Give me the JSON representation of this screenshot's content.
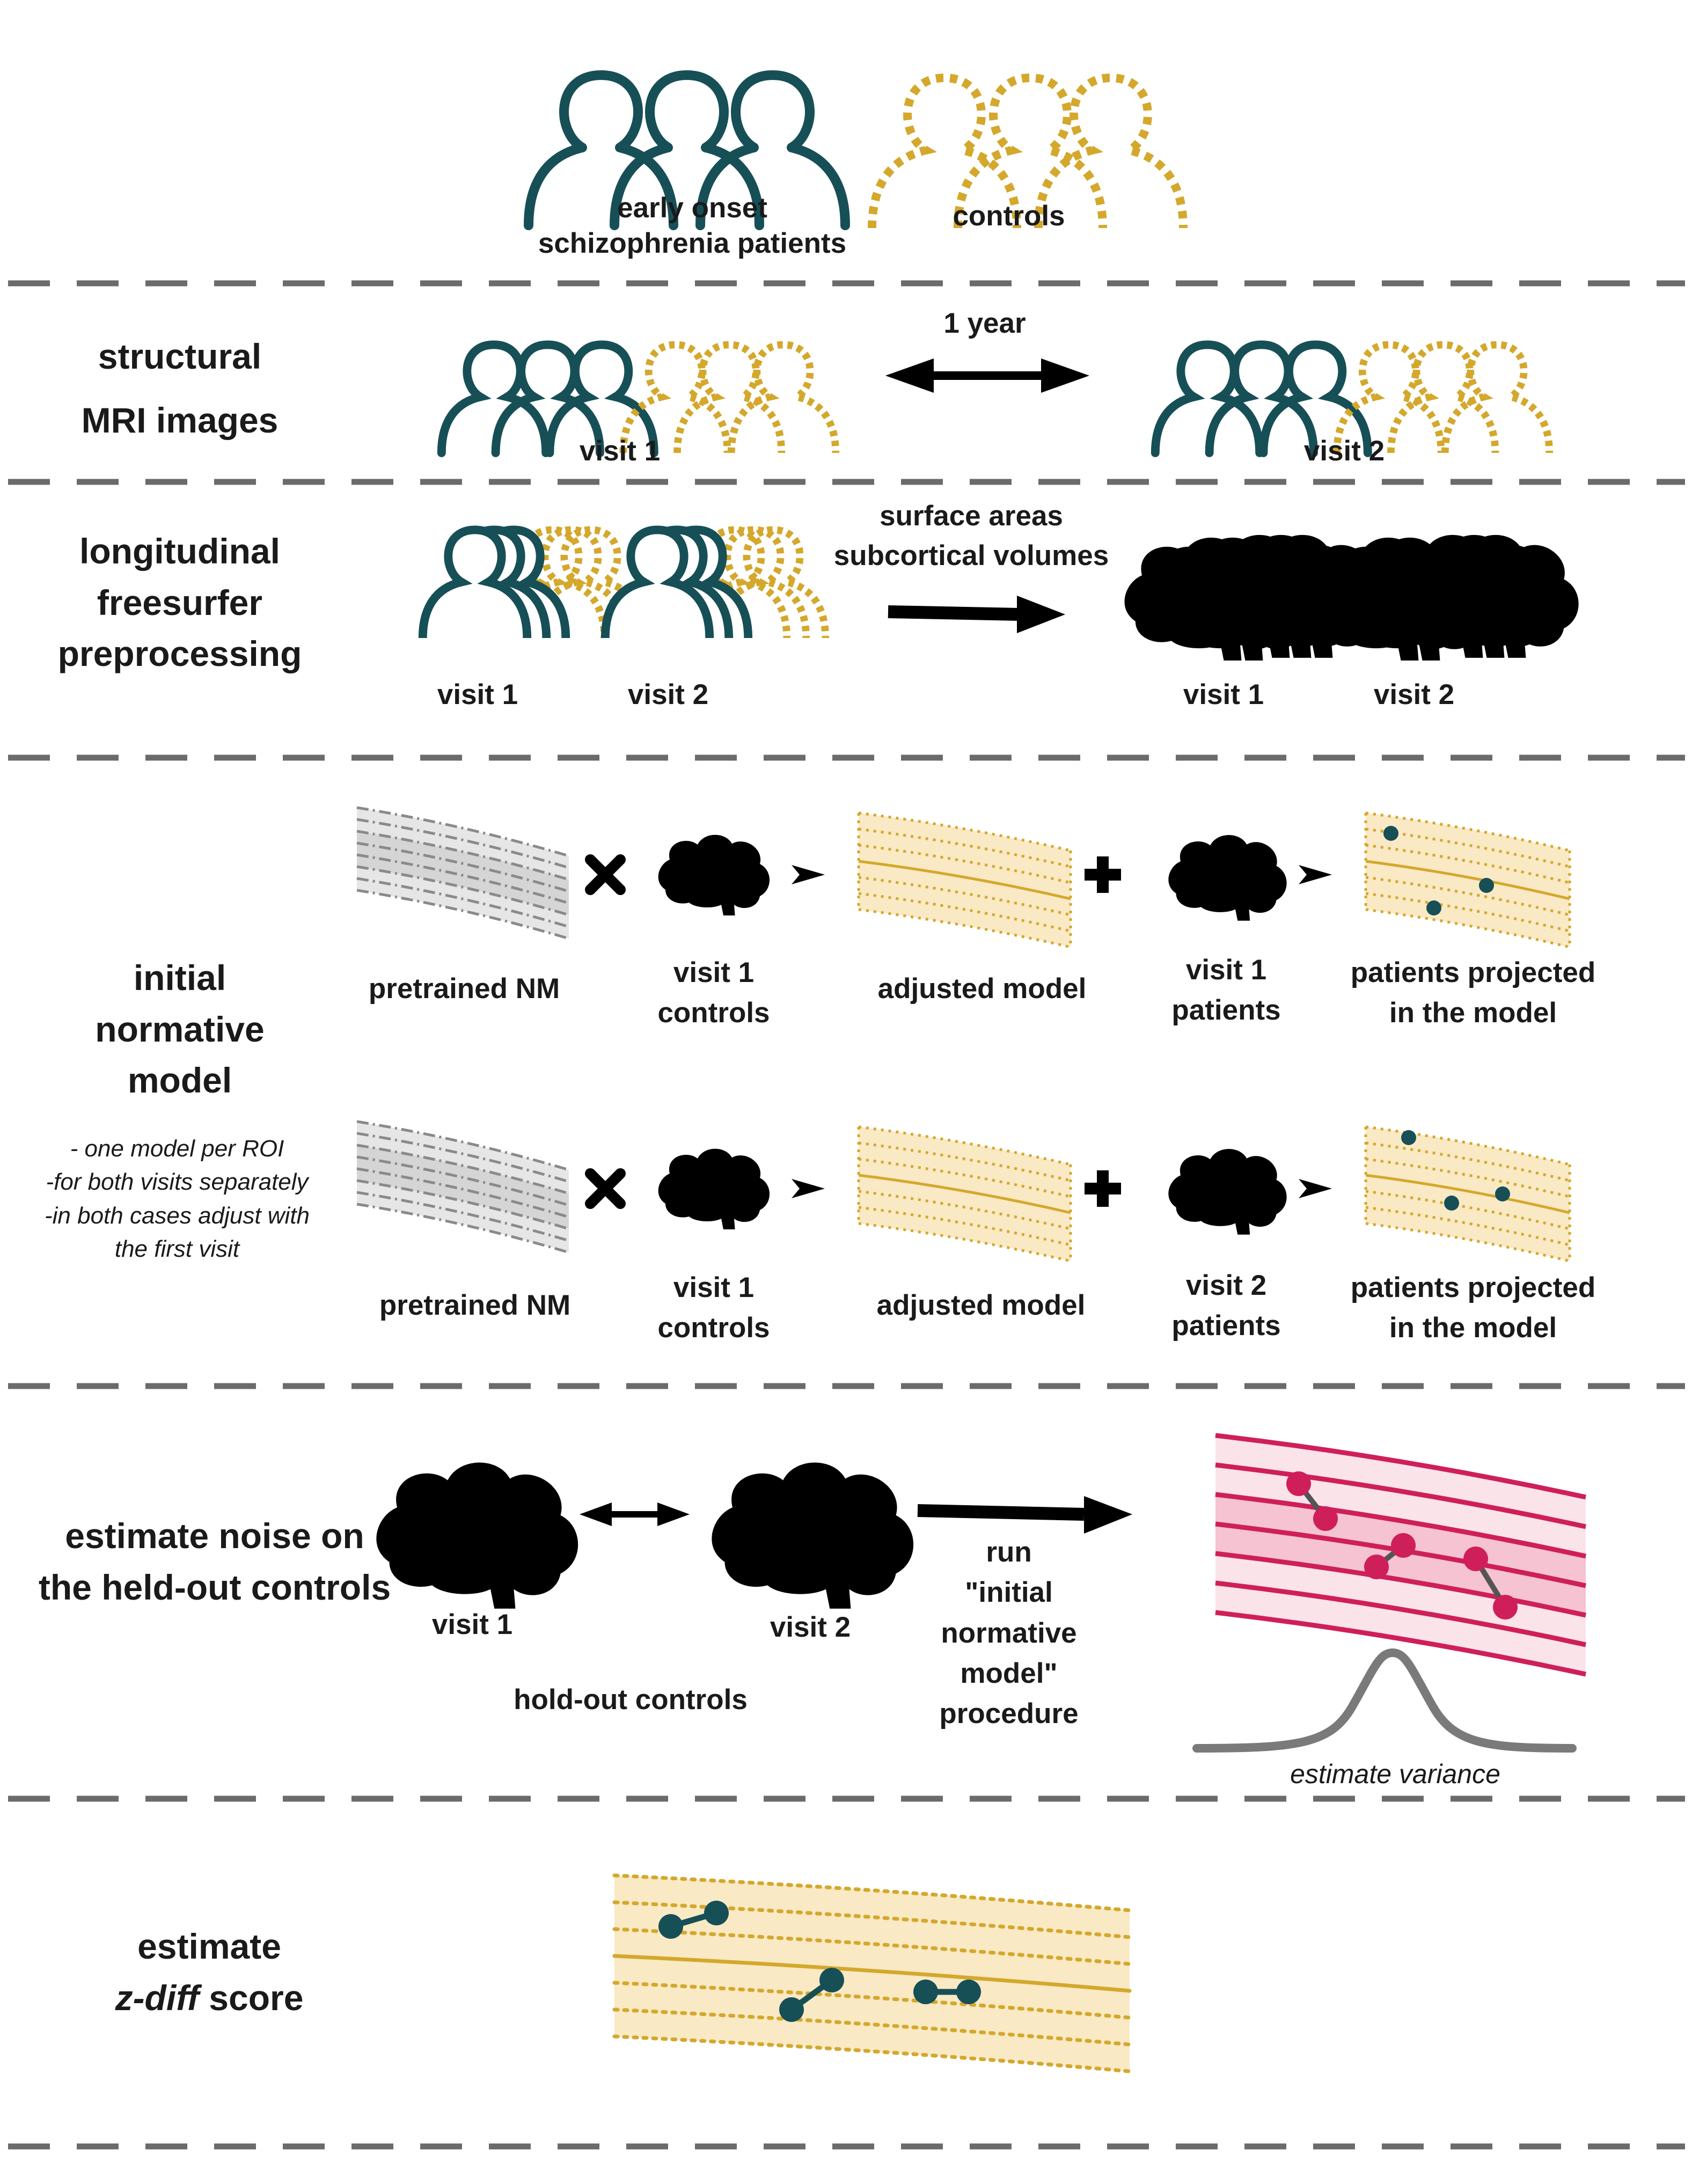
{
  "colors": {
    "patients": "#174f57",
    "controls": "#d4a82c",
    "holdout": "#cf1f5a",
    "pretrained": "#8a8a8a",
    "divider": "#6b6b6b",
    "variance": "#7a7a7a",
    "arrow": "#000000"
  },
  "top": {
    "patients_label": [
      "early onset",
      "schizophrenia patients"
    ],
    "controls_label": "controls",
    "patients_icon": "people-group-icon",
    "controls_icon": "people-group-dotted-icon"
  },
  "sections": {
    "mri": {
      "title": [
        "structural",
        "MRI images"
      ],
      "interval": "1 year",
      "visit1": "visit 1",
      "visit2": "visit 2"
    },
    "freesurfer": {
      "title": [
        "longitudinal",
        "freesurfer",
        "preprocessing"
      ],
      "measures": [
        "surface areas",
        "subcortical volumes"
      ],
      "in_visit1": "visit 1",
      "in_visit2": "visit 2",
      "out_visit1": "visit 1",
      "out_visit2": "visit 2"
    },
    "initial": {
      "title": [
        "initial",
        "normative",
        "model"
      ],
      "notes": [
        "- one model per ROI",
        "-for both visits separately",
        "-in both cases adjust with",
        "the first visit"
      ],
      "row1": {
        "pretrained": "pretrained NM",
        "controls": [
          "visit 1",
          "controls"
        ],
        "adjusted": "adjusted model",
        "patients": [
          "visit 1",
          "patients"
        ],
        "projected": [
          "patients projected",
          "in the model"
        ]
      },
      "row2": {
        "pretrained": "pretrained NM",
        "controls": [
          "visit 1",
          "controls"
        ],
        "adjusted": "adjusted model",
        "patients": [
          "visit 2",
          "patients"
        ],
        "projected": [
          "patients projected",
          "in the model"
        ]
      }
    },
    "noise": {
      "title": [
        "estimate noise on",
        "the held-out controls"
      ],
      "visit1": "visit 1",
      "visit2": "visit 2",
      "holdout": "hold-out controls",
      "run": [
        "run",
        "\"initial",
        "normative",
        "model\"",
        "procedure"
      ],
      "variance": "estimate variance"
    },
    "zdiff": {
      "title_line1": "estimate",
      "title_z": "z-diff",
      "title_rest": " score"
    }
  }
}
